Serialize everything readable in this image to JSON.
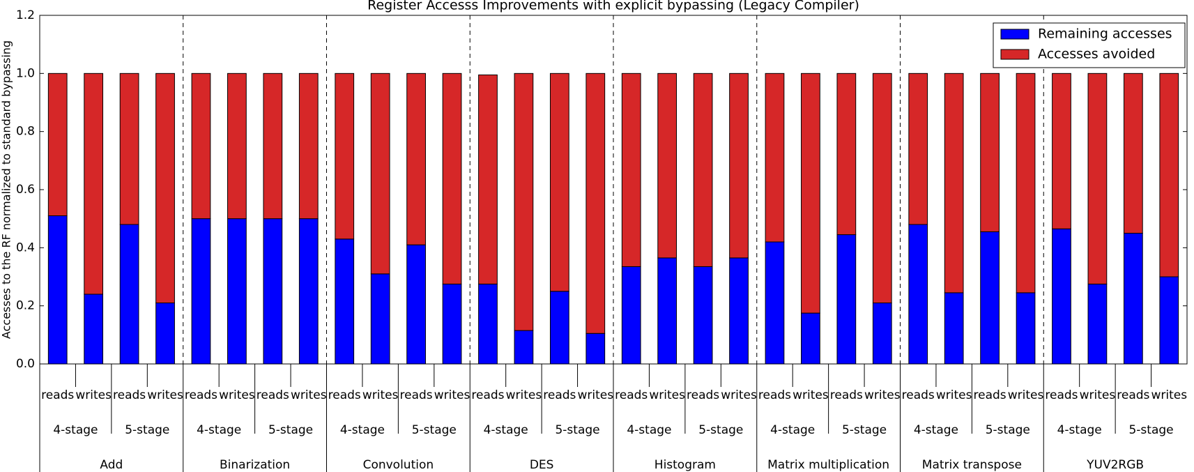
{
  "chart_data": {
    "type": "stacked_bar",
    "title": "Register Accesss Improvements with explicit bypassing (Legacy Compiler)",
    "ylabel": "Accesses to the RF normalized to standard bypassing",
    "groups": [
      "Add",
      "Binarization",
      "Convolution",
      "DES",
      "Histogram",
      "Matrix multiplication",
      "Matrix transpose",
      "YUV2RGB"
    ],
    "stages": [
      "4-stage",
      "5-stage",
      "4-stage",
      "5-stage",
      "4-stage",
      "5-stage",
      "4-stage",
      "5-stage",
      "4-stage",
      "5-stage",
      "4-stage",
      "5-stage",
      "4-stage",
      "5-stage",
      "4-stage",
      "5-stage"
    ],
    "categories": [
      "reads",
      "writes",
      "reads",
      "writes",
      "reads",
      "writes",
      "reads",
      "writes",
      "reads",
      "writes",
      "reads",
      "writes",
      "reads",
      "writes",
      "reads",
      "writes",
      "reads",
      "writes",
      "reads",
      "writes",
      "reads",
      "writes",
      "reads",
      "writes",
      "reads",
      "writes",
      "reads",
      "writes",
      "reads",
      "writes",
      "reads",
      "writes"
    ],
    "series": [
      {
        "name": "Remaining accesses",
        "color": "#0000ff",
        "values": [
          0.51,
          0.24,
          0.48,
          0.21,
          0.5,
          0.5,
          0.5,
          0.5,
          0.43,
          0.31,
          0.41,
          0.275,
          0.275,
          0.115,
          0.25,
          0.105,
          0.335,
          0.365,
          0.335,
          0.365,
          0.42,
          0.175,
          0.445,
          0.21,
          0.48,
          0.245,
          0.455,
          0.245,
          0.465,
          0.275,
          0.45,
          0.3
        ]
      },
      {
        "name": "Accesses avoided",
        "color": "#d62728",
        "values": [
          0.49,
          0.76,
          0.52,
          0.79,
          0.5,
          0.5,
          0.5,
          0.5,
          0.57,
          0.69,
          0.59,
          0.725,
          0.72,
          0.885,
          0.75,
          0.895,
          0.665,
          0.635,
          0.665,
          0.635,
          0.58,
          0.825,
          0.555,
          0.79,
          0.52,
          0.755,
          0.545,
          0.755,
          0.535,
          0.725,
          0.55,
          0.7
        ]
      }
    ],
    "ylim": [
      0,
      1.2
    ],
    "yticks": [
      {
        "value": 0,
        "label": "0.0"
      },
      {
        "value": 0.2,
        "label": "0.2"
      },
      {
        "value": 0.4,
        "label": "0.4"
      },
      {
        "value": 0.6,
        "label": "0.6"
      },
      {
        "value": 0.8,
        "label": "0.8"
      },
      {
        "value": 1,
        "label": "1.0"
      },
      {
        "value": 1.2,
        "label": "1.2"
      }
    ],
    "legend": "upper right"
  }
}
